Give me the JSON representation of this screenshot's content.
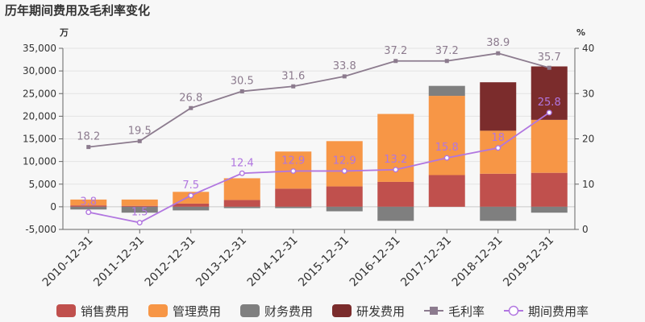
{
  "chart_data": {
    "type": "bar",
    "title": "历年期间费用及毛利率变化",
    "left_unit": "万",
    "right_unit": "%",
    "categories": [
      "2010-12-31",
      "2011-12-31",
      "2012-12-31",
      "2013-12-31",
      "2014-12-31",
      "2015-12-31",
      "2016-12-31",
      "2017-12-31",
      "2018-12-31",
      "2019-12-31"
    ],
    "left_ticks": [
      "35,000",
      "30,000",
      "25,000",
      "20,000",
      "15,000",
      "10,000",
      "5,000",
      "0",
      "-5,000"
    ],
    "right_ticks": [
      "40",
      "30",
      "20",
      "10",
      "0"
    ],
    "ylim_left": [
      -5000,
      35000
    ],
    "ylim_right": [
      0,
      40
    ],
    "grid": true,
    "legend_position": "bottom",
    "bar_series": [
      {
        "name": "销售费用",
        "color": "#c0504d",
        "values": [
          300,
          200,
          700,
          1500,
          4000,
          4500,
          5500,
          7000,
          7300,
          7500
        ]
      },
      {
        "name": "管理费用",
        "color": "#f79646",
        "values": [
          1300,
          1400,
          2600,
          4800,
          8200,
          10000,
          15000,
          17500,
          9500,
          11700
        ]
      },
      {
        "name": "财务费用",
        "color": "#7f7f7f",
        "values": [
          -600,
          -1300,
          -800,
          -300,
          -300,
          -1000,
          -3100,
          2200,
          -3100,
          -1300
        ]
      },
      {
        "name": "研发费用",
        "color": "#7b2c2c",
        "values": [
          0,
          0,
          0,
          0,
          0,
          0,
          0,
          0,
          10700,
          11800
        ]
      }
    ],
    "line_series": [
      {
        "name": "毛利率",
        "color": "#8c7b8e",
        "marker": "square",
        "values": [
          18.2,
          19.5,
          26.8,
          30.5,
          31.6,
          33.8,
          37.2,
          37.2,
          38.9,
          35.7
        ],
        "labels": [
          "18.2",
          "19.5",
          "26.8",
          "30.5",
          "31.6",
          "33.8",
          "37.2",
          "37.2",
          "38.9",
          "35.7"
        ]
      },
      {
        "name": "期间费用率",
        "color": "#b176e0",
        "marker": "circle",
        "values": [
          3.8,
          1.5,
          7.5,
          12.4,
          12.9,
          12.9,
          13.2,
          15.8,
          18,
          25.8
        ],
        "labels": [
          "3.8",
          "1.5",
          "7.5",
          "12.4",
          "12.9",
          "12.9",
          "13.2",
          "15.8",
          "18",
          "25.8"
        ]
      }
    ]
  }
}
